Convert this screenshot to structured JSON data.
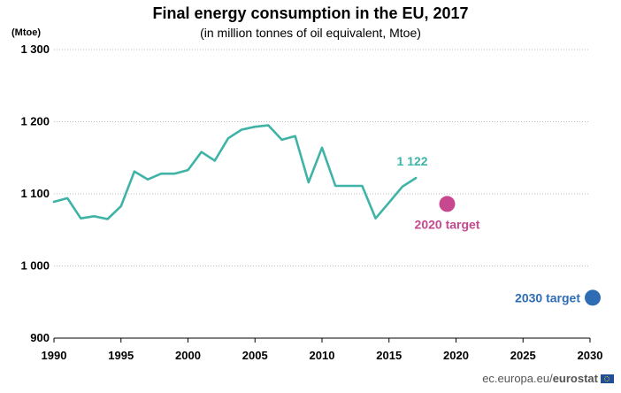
{
  "chart_data": {
    "type": "line",
    "title": "Final energy consumption in the EU, 2017",
    "subtitle": "(in million tonnes of oil equivalent, Mtoe)",
    "ylabel": "(Mtoe)",
    "xlim": [
      1990,
      2030
    ],
    "ylim": [
      900,
      1300
    ],
    "x_ticks": [
      1990,
      1995,
      2000,
      2005,
      2010,
      2015,
      2020,
      2025,
      2030
    ],
    "y_ticks": [
      900,
      1000,
      1100,
      1200,
      1300
    ],
    "y_tick_labels": [
      "900",
      "1 000",
      "1 100",
      "1 200",
      "1 300"
    ],
    "grid": "horizontal dotted",
    "series": [
      {
        "color": "#3fb3a6",
        "x": [
          1990,
          1991,
          1992,
          1993,
          1994,
          1995,
          1996,
          1997,
          1998,
          1999,
          2000,
          2001,
          2002,
          2003,
          2004,
          2005,
          2006,
          2007,
          2008,
          2009,
          2010,
          2011,
          2012,
          2013,
          2014,
          2015,
          2016,
          2017
        ],
        "values": [
          1089,
          1094,
          1066,
          1069,
          1065,
          1083,
          1131,
          1120,
          1128,
          1128,
          1133,
          1158,
          1146,
          1177,
          1189,
          1193,
          1195,
          1175,
          1180,
          1116,
          1164,
          1111,
          1111,
          1111,
          1066,
          1088,
          1110,
          1122
        ]
      }
    ],
    "end_label": "1 122",
    "targets": [
      {
        "label": "2020 target",
        "x": 2020,
        "value": 1086,
        "color": "#c8488f"
      },
      {
        "label": "2030 target",
        "x": 2030,
        "value": 956,
        "color": "#2e6db4"
      }
    ]
  },
  "source": {
    "prefix": "ec.europa.eu/",
    "brand": "eurostat"
  }
}
